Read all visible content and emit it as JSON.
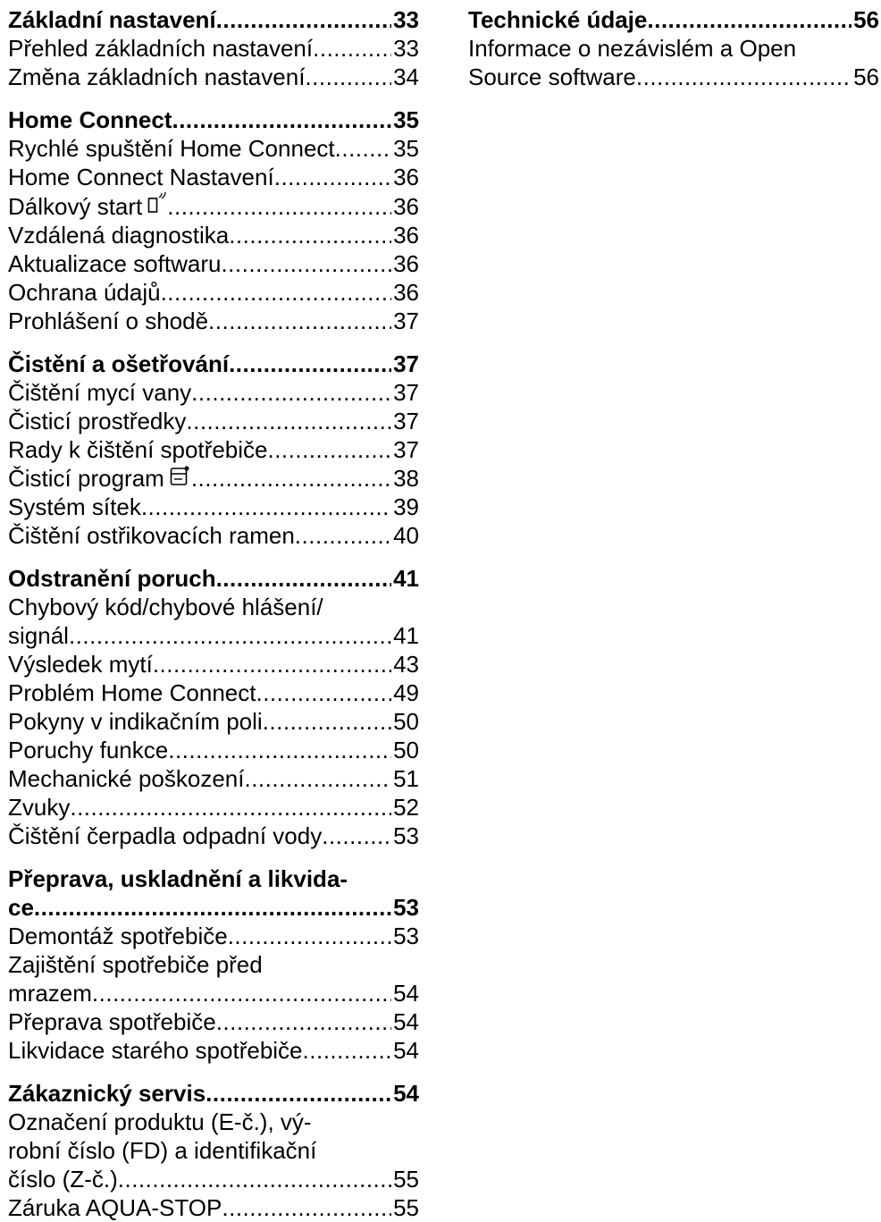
{
  "toc": {
    "left": [
      {
        "heading": {
          "text": "Základní nastavení",
          "page": "33"
        },
        "items": [
          {
            "lines": [
              "Přehled základních nastavení"
            ],
            "page": "33"
          },
          {
            "lines": [
              "Změna základních nastavení"
            ],
            "page": "34"
          }
        ]
      },
      {
        "heading": {
          "text": "Home Connect ",
          "page": "35"
        },
        "items": [
          {
            "lines": [
              "Rychlé spuštění Home Connect"
            ],
            "page": "35"
          },
          {
            "lines": [
              "Home Connect Nastavení "
            ],
            "page": "36"
          },
          {
            "lines": [
              "Dálkový start "
            ],
            "page": "36",
            "icon": "remote-start-icon"
          },
          {
            "lines": [
              "Vzdálená diagnostika "
            ],
            "page": "36"
          },
          {
            "lines": [
              "Aktualizace softwaru "
            ],
            "page": "36"
          },
          {
            "lines": [
              "Ochrana údajů"
            ],
            "page": "36"
          },
          {
            "lines": [
              "Prohlášení o shodě "
            ],
            "page": "37"
          }
        ]
      },
      {
        "heading": {
          "text": "Čistění a ošetřování",
          "page": "37"
        },
        "items": [
          {
            "lines": [
              "Čištění mycí vany "
            ],
            "page": "37"
          },
          {
            "lines": [
              "Čisticí prostředky"
            ],
            "page": "37"
          },
          {
            "lines": [
              "Rady k čištění spotřebiče"
            ],
            "page": "37"
          },
          {
            "lines": [
              "Čisticí program "
            ],
            "page": "38",
            "icon": "machine-care-icon"
          },
          {
            "lines": [
              "Systém sítek "
            ],
            "page": "39"
          },
          {
            "lines": [
              "Čištění ostřikovacích ramen"
            ],
            "page": "40"
          }
        ]
      },
      {
        "heading": {
          "text": "Odstranění poruch",
          "page": "41"
        },
        "items": [
          {
            "lines": [
              "Chybový kód/chybové hlášení/",
              "signál"
            ],
            "page": "41"
          },
          {
            "lines": [
              "Výsledek mytí "
            ],
            "page": "43"
          },
          {
            "lines": [
              "Problém Home Connect"
            ],
            "page": "49"
          },
          {
            "lines": [
              "Pokyny v indikačním poli"
            ],
            "page": "50"
          },
          {
            "lines": [
              "Poruchy funkce"
            ],
            "page": "50"
          },
          {
            "lines": [
              "Mechanické poškození"
            ],
            "page": "51"
          },
          {
            "lines": [
              "Zvuky "
            ],
            "page": "52"
          },
          {
            "lines": [
              "Čištění čerpadla odpadní vody "
            ],
            "page": "53"
          }
        ]
      },
      {
        "heading": {
          "lines": [
            "Přeprava, uskladnění a likvida-",
            "ce"
          ],
          "page": "53"
        },
        "items": [
          {
            "lines": [
              "Demontáž spotřebiče "
            ],
            "page": "53"
          },
          {
            "lines": [
              "Zajištění spotřebiče před",
              "mrazem"
            ],
            "page": "54"
          },
          {
            "lines": [
              "Přeprava spotřebiče "
            ],
            "page": "54"
          },
          {
            "lines": [
              "Likvidace starého spotřebiče "
            ],
            "page": "54"
          }
        ]
      },
      {
        "heading": {
          "text": "Zákaznický servis",
          "page": "54"
        },
        "items": [
          {
            "lines": [
              "Označení produktu (E-č.), vý-",
              "robní číslo (FD) a identifikační",
              "číslo (Z-č.)"
            ],
            "page": "55"
          },
          {
            "lines": [
              "Záruka AQUA-STOP"
            ],
            "page": "55"
          }
        ]
      }
    ],
    "right": [
      {
        "heading": {
          "text": "Technické údaje",
          "page": "56"
        },
        "items": [
          {
            "lines": [
              "Informace o nezávislém a Open",
              "Source software "
            ],
            "page": "56"
          }
        ]
      }
    ]
  }
}
